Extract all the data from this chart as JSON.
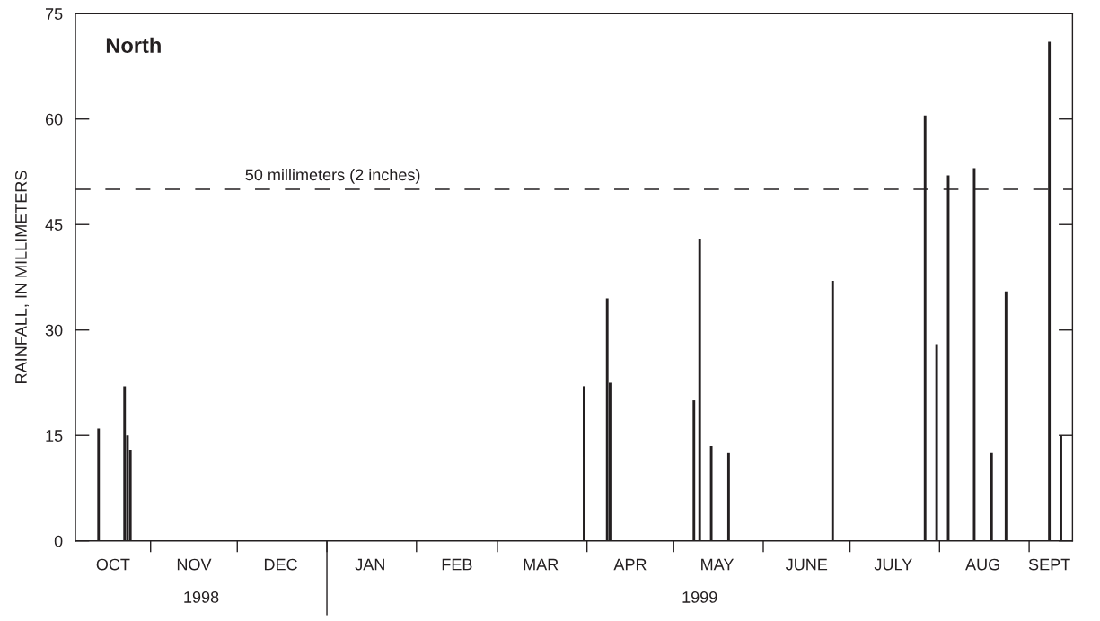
{
  "chart_data": {
    "type": "bar",
    "title": "North",
    "ylabel": "RAINFALL, IN MILLIMETERS",
    "x": [
      "1998-10-14",
      "1998-10-23",
      "1998-10-24",
      "1998-10-25",
      "1999-03-31",
      "1999-04-08",
      "1999-04-09",
      "1999-05-08",
      "1999-05-10",
      "1999-05-14",
      "1999-05-20",
      "1999-06-25",
      "1999-07-27",
      "1999-07-31",
      "1999-08-04",
      "1999-08-13",
      "1999-08-19",
      "1999-08-24",
      "1999-09-08",
      "1999-09-12"
    ],
    "series": [
      {
        "color": "#231f20",
        "values": [
          16,
          22,
          15,
          13,
          22,
          34.5,
          22.5,
          20,
          43,
          13.5,
          12.5,
          37,
          60.5,
          28,
          52,
          53,
          12.5,
          35.5,
          71,
          15
        ]
      }
    ],
    "xlim": [
      "1998-10-06",
      "1999-09-16"
    ],
    "xticks": [
      {
        "value": "1998-11-01",
        "label": null
      },
      {
        "value": "1998-12-01",
        "label": null
      },
      {
        "value": "1999-01-01",
        "label": null
      },
      {
        "value": "1999-02-01",
        "label": null
      },
      {
        "value": "1999-03-01",
        "label": null
      },
      {
        "value": "1999-04-01",
        "label": null
      },
      {
        "value": "1999-05-01",
        "label": null
      },
      {
        "value": "1999-06-01",
        "label": null
      },
      {
        "value": "1999-07-01",
        "label": null
      },
      {
        "value": "1999-08-01",
        "label": null
      },
      {
        "value": "1999-09-01",
        "label": null
      },
      {
        "value": "1998-10-19",
        "label": "OCT"
      },
      {
        "value": "1998-11-16",
        "label": "NOV"
      },
      {
        "value": "1998-12-16",
        "label": "DEC"
      },
      {
        "value": "1999-01-16",
        "label": "JAN"
      },
      {
        "value": "1999-02-15",
        "label": "FEB"
      },
      {
        "value": "1999-03-16",
        "label": "MAR"
      },
      {
        "value": "1999-04-16",
        "label": "APR"
      },
      {
        "value": "1999-05-16",
        "label": "MAY"
      },
      {
        "value": "1999-06-16",
        "label": "JUNE"
      },
      {
        "value": "1999-07-16",
        "label": "JULY"
      },
      {
        "value": "1999-08-16",
        "label": "AUG"
      },
      {
        "value": "1999-09-08",
        "label": "SEPT"
      }
    ],
    "ylim": [
      0,
      75
    ],
    "yticks": [
      0,
      15,
      30,
      45,
      60,
      75
    ],
    "ref_lines": [
      {
        "axis": "y",
        "value": 50,
        "label": "50 millimeters (2 inches)",
        "color": "#231f20",
        "line_style": "dashed"
      }
    ],
    "annotations": [
      "1998",
      "1999"
    ],
    "grid": false,
    "legend": false
  }
}
